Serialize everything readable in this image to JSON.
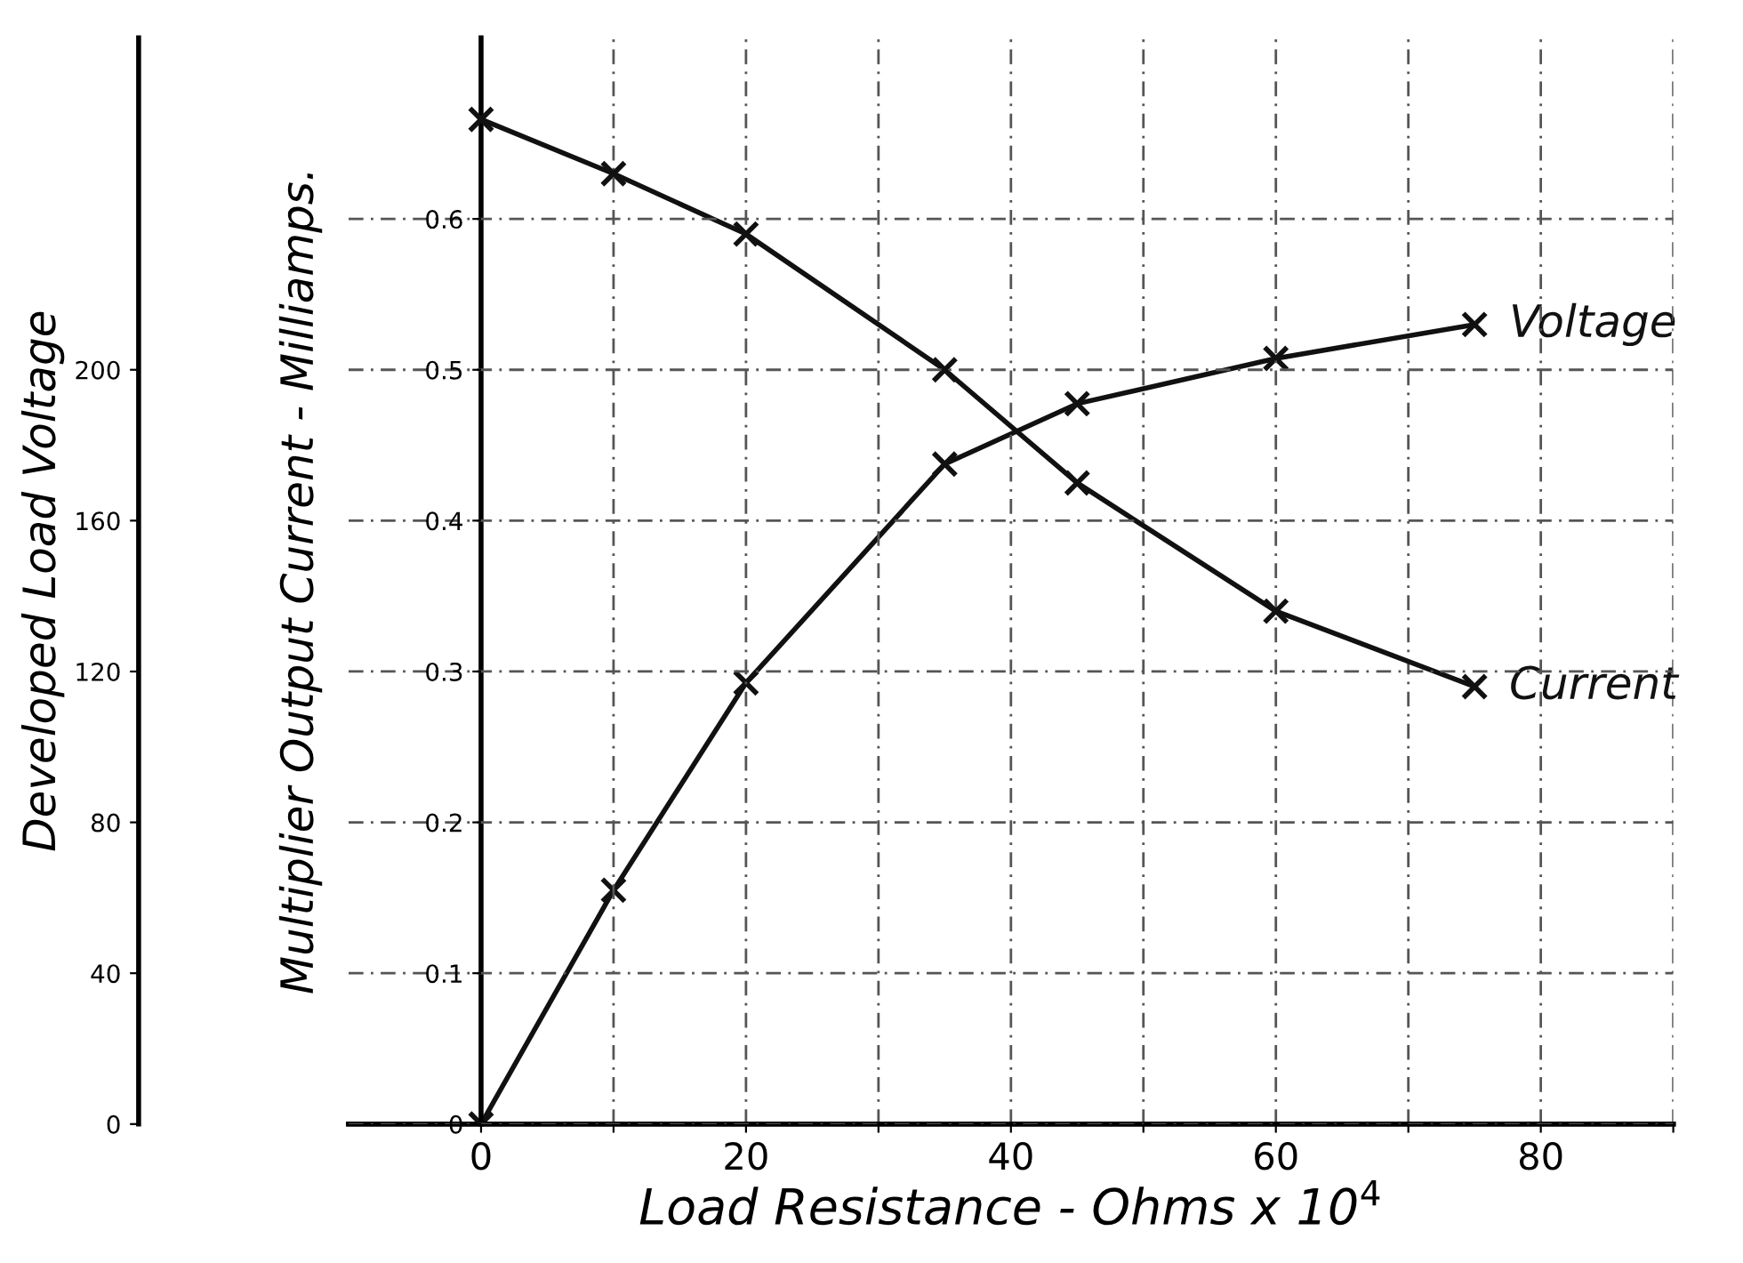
{
  "chart_data": {
    "type": "line",
    "xlabel": "Load Resistance - Ohms x 10$^{4}$",
    "ylabel": "Multiplier Output Current - Milliamps.",
    "y2label": "Developed Load Voltage",
    "x": [
      0,
      10,
      20,
      35,
      45,
      60,
      75
    ],
    "series": [
      {
        "name": "Current",
        "color": "#111111",
        "values": [
          0.666,
          0.63,
          0.59,
          0.5,
          0.425,
          0.34,
          0.29
        ]
      },
      {
        "name": "Voltage",
        "color": "#111111",
        "axis": "y2",
        "values": [
          0,
          62,
          117,
          175,
          191,
          203,
          212
        ]
      }
    ],
    "xlim": [
      -10,
      90
    ],
    "xticks": [
      0,
      {
        "value": 10,
        "label": null
      },
      20,
      {
        "value": 30,
        "label": null
      },
      40,
      {
        "value": 50,
        "label": null
      },
      60,
      {
        "value": 70,
        "label": null
      },
      80,
      {
        "value": 90,
        "label": null
      }
    ],
    "ylim": [
      0,
      0.72
    ],
    "yticks": [
      0,
      0.1,
      0.2,
      0.3,
      0.4,
      0.5,
      0.6
    ],
    "y2lim": [
      0,
      288
    ],
    "y2ticks": [
      0,
      40,
      80,
      120,
      160,
      200
    ],
    "grid": true,
    "legend": false,
    "marker": "cross",
    "line_style": "solid"
  }
}
